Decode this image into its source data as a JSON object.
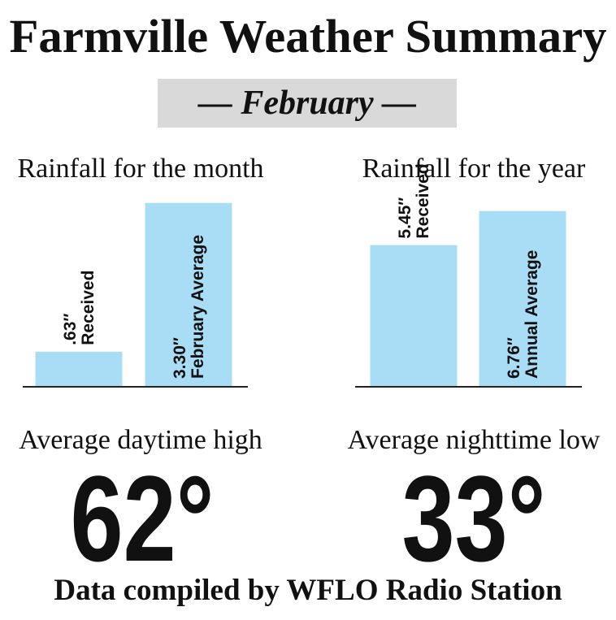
{
  "title": "Farmville Weather Summary",
  "subtitle": "— February —",
  "chart_data": [
    {
      "type": "bar",
      "title": "Rainfall for the month",
      "categories": [
        "Received",
        "February Average"
      ],
      "values": [
        0.63,
        3.3
      ],
      "value_labels": [
        ".63″",
        "3.30″"
      ],
      "color": "#a9dcf5",
      "ylim": [
        0,
        3.5
      ]
    },
    {
      "type": "bar",
      "title": "Rainfall for the year",
      "categories": [
        "Received",
        "Annual Average"
      ],
      "values": [
        5.45,
        6.76
      ],
      "value_labels": [
        "5.45″",
        "6.76″"
      ],
      "color": "#a9dcf5",
      "ylim": [
        0,
        7.5
      ]
    }
  ],
  "temperatures": [
    {
      "label": "Average daytime high",
      "value": "62°"
    },
    {
      "label": "Average nighttime low",
      "value": "33°"
    }
  ],
  "footer": "Data compiled by WFLO Radio Station"
}
